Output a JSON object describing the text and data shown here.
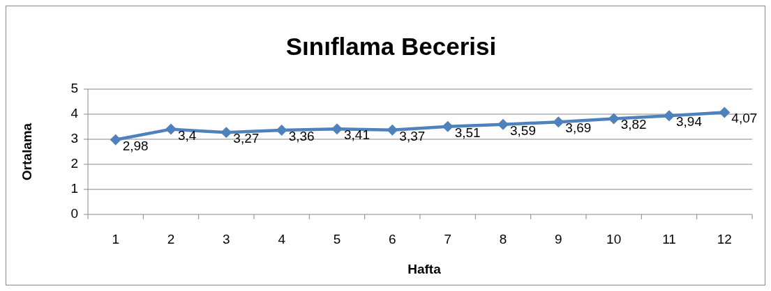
{
  "chart_data": {
    "type": "line",
    "title": "Sınıflama Becerisi",
    "xlabel": "Hafta",
    "ylabel": "Ortalama",
    "categories": [
      "1",
      "2",
      "3",
      "4",
      "5",
      "6",
      "7",
      "8",
      "9",
      "10",
      "11",
      "12"
    ],
    "series": [
      {
        "color": "#4f81bd",
        "values": [
          2.98,
          3.4,
          3.27,
          3.36,
          3.41,
          3.37,
          3.51,
          3.59,
          3.69,
          3.82,
          3.94,
          4.07
        ],
        "value_labels": [
          "2,98",
          "3,4",
          "3,27",
          "3,36",
          "3,41",
          "3,37",
          "3,51",
          "3,59",
          "3,69",
          "3,82",
          "3,94",
          "4,07"
        ]
      }
    ],
    "ylim": [
      0,
      5
    ],
    "yticks": [
      0,
      1,
      2,
      3,
      4,
      5
    ],
    "grid": "y",
    "marker": "diamond",
    "line_style": "solid"
  }
}
